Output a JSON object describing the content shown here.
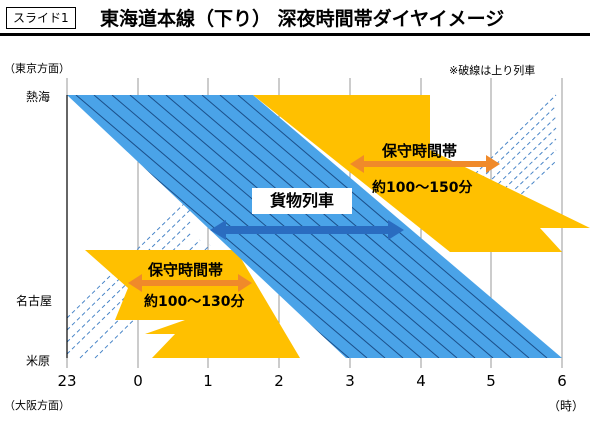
{
  "slide": {
    "badge": "スライド1",
    "title": "東海道本線（下り）  深夜時間帯ダイヤイメージ"
  },
  "labels": {
    "tokyo_direction": "（東京方面）",
    "osaka_direction": "（大阪方面）",
    "dashed_note": "※破線は上り列車",
    "time_unit": "（時）"
  },
  "stations": [
    "熱海",
    "名古屋",
    "米原"
  ],
  "hours": [
    "23",
    "0",
    "1",
    "2",
    "3",
    "4",
    "5",
    "6"
  ],
  "freight": {
    "label": "貨物列車"
  },
  "maintenance_upper": {
    "label": "保守時間帯",
    "duration": "約100〜150分"
  },
  "maintenance_lower": {
    "label": "保守時間帯",
    "duration": "約100〜130分"
  },
  "colors": {
    "freight_fill": "#4aa3e8",
    "freight_lines": "#1b4f8a",
    "maintenance": "#ffc000",
    "arrow_orange": "#f08a2a",
    "arrow_blue": "#2a6cc0",
    "dashed": "#4a86c8"
  }
}
